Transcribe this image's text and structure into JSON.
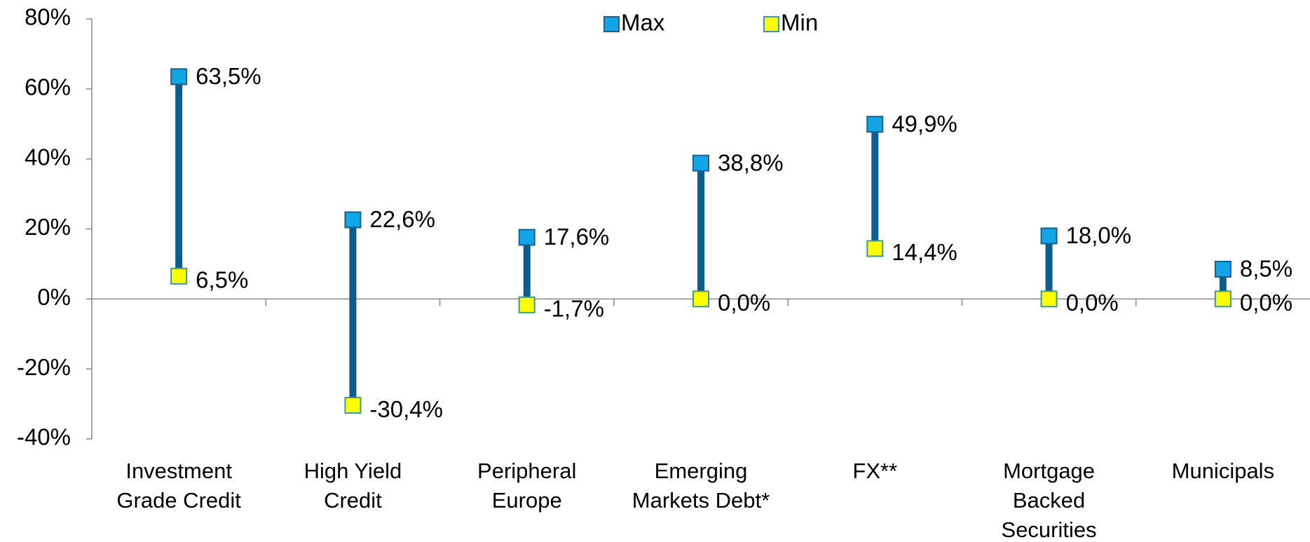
{
  "chart_data": {
    "type": "hilo",
    "categories": [
      [
        "Investment",
        "Grade Credit"
      ],
      [
        "High Yield",
        "Credit"
      ],
      [
        "Peripheral",
        "Europe"
      ],
      [
        "Emerging",
        "Markets Debt*"
      ],
      [
        "FX**"
      ],
      [
        "Mortgage",
        "Backed",
        "Securities"
      ],
      [
        "Municipals"
      ]
    ],
    "series": [
      {
        "name": "Max",
        "color": "#12a6e6",
        "values": [
          63.5,
          22.6,
          17.6,
          38.8,
          49.9,
          18.0,
          8.5
        ],
        "value_labels": [
          "63,5%",
          "22,6%",
          "17,6%",
          "38,8%",
          "49,9%",
          "18,0%",
          "8,5%"
        ]
      },
      {
        "name": "Min",
        "color": "#ffff00",
        "values": [
          6.5,
          -30.4,
          -1.7,
          0.0,
          14.4,
          0.0,
          0.0
        ],
        "value_labels": [
          "6,5%",
          "-30,4%",
          "-1,7%",
          "0,0%",
          "14,4%",
          "0,0%",
          "0,0%"
        ]
      }
    ],
    "line_color": "#0b5d8c",
    "ylim": [
      -40,
      80
    ],
    "yticks": [
      {
        "value": -40,
        "label": "-40%"
      },
      {
        "value": -20,
        "label": "-20%"
      },
      {
        "value": 0,
        "label": "0%"
      },
      {
        "value": 20,
        "label": "20%"
      },
      {
        "value": 40,
        "label": "40%"
      },
      {
        "value": 60,
        "label": "60%"
      },
      {
        "value": 80,
        "label": "80%"
      }
    ],
    "legend": "top"
  }
}
